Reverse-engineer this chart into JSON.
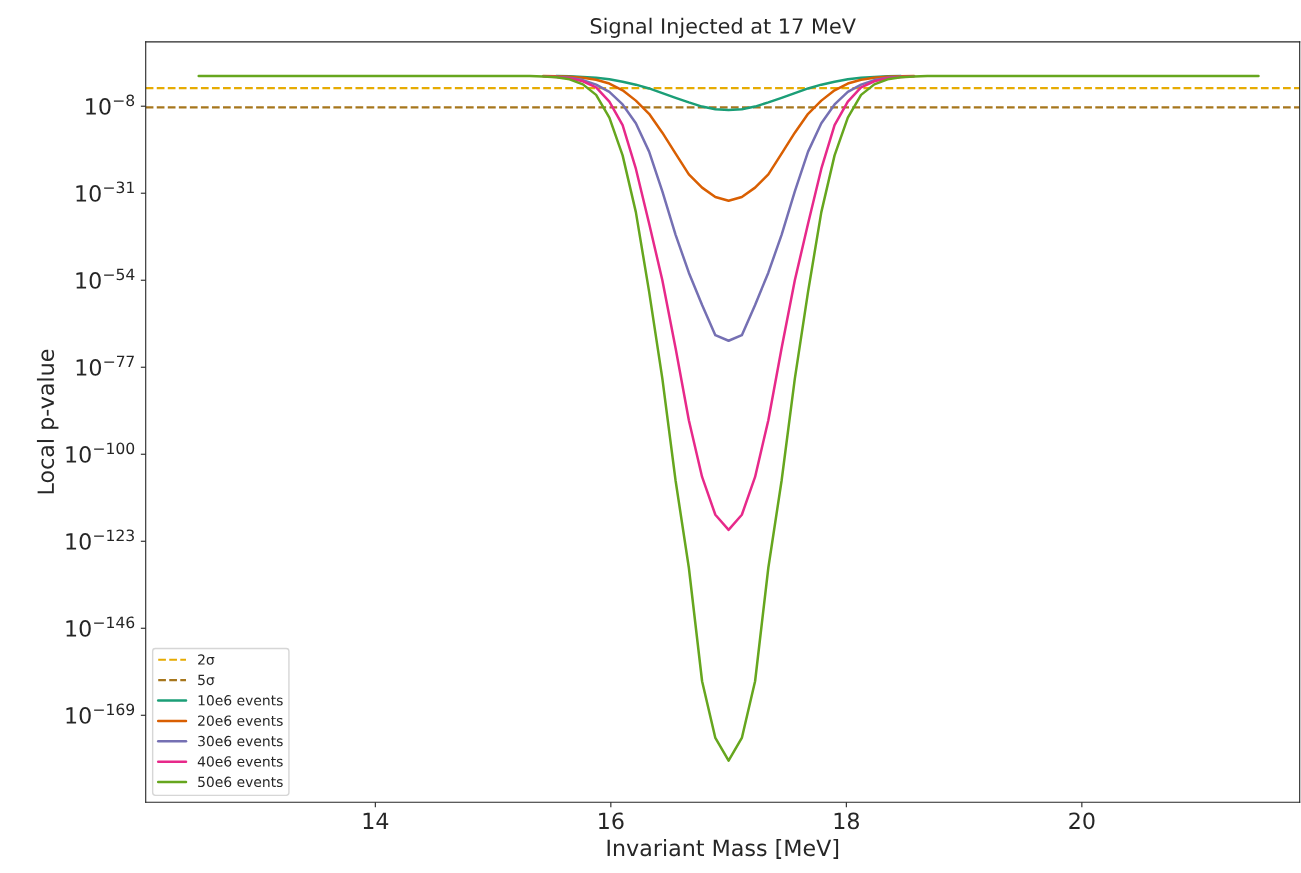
{
  "chart_data": {
    "type": "line",
    "title": "Signal Injected at 17 MeV",
    "xlabel": "Invariant Mass [MeV]",
    "ylabel": "Local p-value",
    "x": [
      12.5,
      15.2,
      15.3125,
      15.425,
      15.5375,
      15.65,
      15.7625,
      15.875,
      15.9875,
      16.1,
      16.2125,
      16.325,
      16.4375,
      16.55,
      16.6625,
      16.775,
      16.8875,
      17.0,
      17.1125,
      17.225,
      17.3375,
      17.45,
      17.5625,
      17.675,
      17.7875,
      17.9,
      18.0125,
      18.125,
      18.2375,
      18.35,
      18.4625,
      18.575,
      18.6875,
      18.8,
      21.5
    ],
    "series": [
      {
        "name": "10e6 events",
        "color": "#1b9e77",
        "values": [
          null,
          null,
          null,
          null,
          0.91,
          0.79,
          0.56,
          0.32,
          0.13,
          0.03,
          0.005,
          0.0005,
          3e-05,
          1.6e-06,
          1e-07,
          8e-09,
          1.6e-09,
          1e-09,
          1.6e-09,
          8e-09,
          1e-07,
          1.6e-06,
          3e-05,
          0.0005,
          0.005,
          0.03,
          0.13,
          0.32,
          0.56,
          0.79,
          0.91,
          null,
          null,
          null,
          null
        ]
      },
      {
        "name": "20e6 events",
        "color": "#d95f02",
        "values": [
          null,
          null,
          null,
          0.93,
          0.83,
          0.63,
          0.32,
          0.1,
          0.01,
          0.00016,
          3e-07,
          1e-10,
          1e-15,
          3e-21,
          1e-26,
          3e-30,
          1e-32,
          1e-33,
          1e-32,
          3e-30,
          1e-26,
          3e-21,
          1e-15,
          1e-10,
          3e-07,
          0.00016,
          0.01,
          0.1,
          0.32,
          0.63,
          0.83,
          0.93,
          null,
          null,
          null
        ]
      },
      {
        "name": "30e6 events",
        "color": "#7570b3",
        "values": [
          null,
          null,
          null,
          null,
          0.63,
          0.32,
          0.08,
          0.005,
          6e-05,
          3e-08,
          3e-13,
          1e-20,
          3e-31,
          1e-42,
          1e-52,
          3e-61,
          3e-69,
          1e-70,
          3e-69,
          3e-61,
          1e-52,
          1e-42,
          3e-31,
          1e-20,
          3e-13,
          3e-08,
          6e-05,
          0.005,
          0.08,
          0.32,
          0.63,
          null,
          null,
          null,
          null
        ]
      },
      {
        "name": "40e6 events",
        "color": "#e7298a",
        "values": [
          null,
          null,
          null,
          0.83,
          0.56,
          0.25,
          0.04,
          0.001,
          1.6e-07,
          1e-13,
          3e-25,
          1e-39,
          1e-54,
          1e-72,
          1e-91,
          1e-106,
          1e-116,
          1e-120,
          1e-116,
          1e-106,
          1e-91,
          1e-72,
          1e-54,
          1e-39,
          3e-25,
          1e-13,
          1.6e-07,
          0.001,
          0.04,
          0.25,
          0.56,
          0.83,
          null,
          null,
          null
        ]
      },
      {
        "name": "50e6 events",
        "color": "#66a61e",
        "values": [
          1,
          1,
          0.91,
          0.76,
          0.45,
          0.13,
          0.006,
          1e-05,
          1e-11,
          1e-21,
          1e-36,
          1e-57,
          1e-80,
          1e-107,
          1e-130,
          1e-160,
          1e-175,
          1e-181,
          1e-175,
          1e-160,
          1e-130,
          1e-107,
          1e-80,
          1e-57,
          1e-36,
          1e-21,
          1e-11,
          1e-05,
          0.006,
          0.13,
          0.45,
          0.76,
          0.91,
          1,
          1
        ]
      }
    ],
    "ref_lines": [
      {
        "axis": "y",
        "value": 0.0006,
        "label": "2σ",
        "color": "#e6ab02",
        "line_style": "dashed"
      },
      {
        "axis": "y",
        "value": 5e-09,
        "label": "5σ",
        "color": "#a6761d",
        "line_style": "dashed"
      }
    ],
    "log": "y",
    "xlim": [
      12.05,
      21.85
    ],
    "ylim": [
      1e-192,
      1000000000.0
    ],
    "xticks": [
      14,
      16,
      18,
      20
    ],
    "yticks": [
      {
        "value": 1e-08,
        "label": "10$^{−8}$"
      },
      {
        "value": 1e-31,
        "label": "10$^{−31}$"
      },
      {
        "value": 1e-54,
        "label": "10$^{−54}$"
      },
      {
        "value": 1e-77,
        "label": "10$^{−77}$"
      },
      {
        "value": 1e-100,
        "label": "10$^{−100}$"
      },
      {
        "value": 1e-123,
        "label": "10$^{−123}$"
      },
      {
        "value": 1e-146,
        "label": "10$^{−146}$"
      },
      {
        "value": 1e-169,
        "label": "10$^{−169}$"
      }
    ],
    "grid": false,
    "legend": "bottom left",
    "line_style": "solid",
    "marker": "none"
  }
}
